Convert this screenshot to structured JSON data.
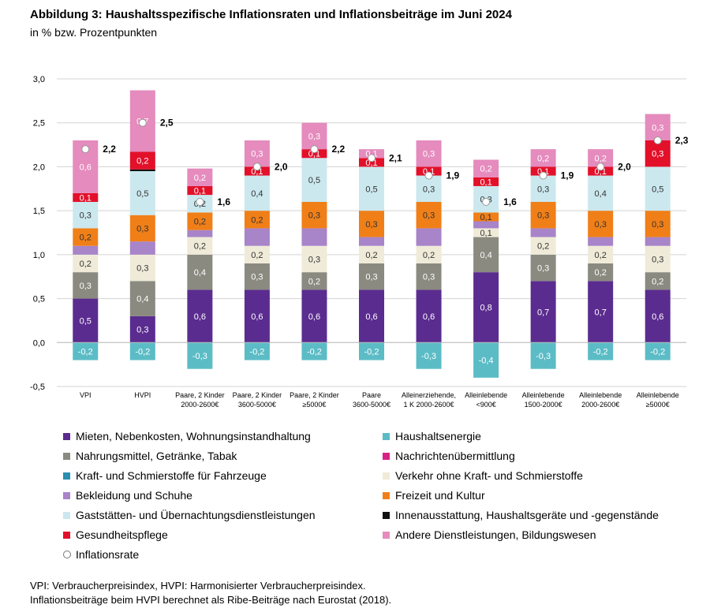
{
  "title": "Abbildung 3: Haushaltsspezifische Inflationsraten und Inflationsbeiträge im Juni 2024",
  "subtitle": "in % bzw. Prozentpunkten",
  "footnotes": [
    "VPI: Verbraucherpreisindex, HVPI: Harmonisierter Verbraucherpreisindex.",
    "Inflationsbeiträge beim HVPI berechnet als Ribe-Beiträge nach Eurostat (2018)."
  ],
  "chart_data": {
    "type": "bar",
    "stacked": true,
    "ylim": [
      -0.5,
      3.0
    ],
    "yticks": [
      "-0,5",
      "0,0",
      "0,5",
      "1,0",
      "1,5",
      "2,0",
      "2,5",
      "3,0"
    ],
    "ytick_values": [
      -0.5,
      0,
      0.5,
      1.0,
      1.5,
      2.0,
      2.5,
      3.0
    ],
    "grid": true,
    "legend_position": "bottom",
    "categories": [
      [
        "VPI"
      ],
      [
        "HVPI"
      ],
      [
        "Paare, 2  Kinder",
        "2000-2600€"
      ],
      [
        "Paare, 2  Kinder",
        "3600-5000€"
      ],
      [
        "Paare, 2  Kinder",
        "≥5000€"
      ],
      [
        "Paare",
        "3600-5000€"
      ],
      [
        "Alleinerziehende,",
        "1 K 2000-2600€"
      ],
      [
        "Alleinlebende",
        "<900€"
      ],
      [
        "Alleinlebende",
        "1500-2000€"
      ],
      [
        "Alleinlebende",
        "2000-2600€"
      ],
      [
        "Alleinlebende",
        "≥5000€"
      ]
    ],
    "series": [
      {
        "name": "Mieten, Nebenkosten, Wohnungsinstandhaltung",
        "color": "#5b2c8f",
        "values": [
          0.5,
          0.3,
          0.6,
          0.6,
          0.6,
          0.6,
          0.6,
          0.8,
          0.7,
          0.7,
          0.6
        ],
        "labels": [
          "0,5",
          "0,3",
          "0,6",
          "0,6",
          "0,6",
          "0,6",
          "0,6",
          "0,8",
          "0,7",
          "0,7",
          "0,6"
        ]
      },
      {
        "name": "Nahrungsmittel, Getränke, Tabak",
        "color": "#8a8a80",
        "values": [
          0.3,
          0.4,
          0.4,
          0.3,
          0.2,
          0.3,
          0.3,
          0.4,
          0.3,
          0.2,
          0.2
        ],
        "labels": [
          "0,3",
          "0,4",
          "0,4",
          "0,3",
          "0,2",
          "0,3",
          "0,3",
          "0,4",
          "0,3",
          "0,2",
          "0,2"
        ]
      },
      {
        "name": "Verkehr ohne Kraft- und Schmierstoffe",
        "color": "#efebd8",
        "values": [
          0.2,
          0.3,
          0.2,
          0.2,
          0.3,
          0.2,
          0.2,
          0.1,
          0.2,
          0.2,
          0.3
        ],
        "labels": [
          "0,2",
          "0,3",
          "0,2",
          "0,2",
          "0,3",
          "0,2",
          "0,2",
          "0,1",
          "0,2",
          "0,2",
          "0,3"
        ]
      },
      {
        "name": "Bekleidung und Schuhe",
        "color": "#a884c8",
        "values": [
          0.1,
          0.15,
          0.08,
          0.2,
          0.2,
          0.1,
          0.2,
          0.08,
          0.1,
          0.1,
          0.1
        ],
        "labels": [
          "",
          "",
          "",
          "",
          "",
          "",
          "",
          "",
          "",
          "",
          ""
        ]
      },
      {
        "name": "Freizeit und Kultur",
        "color": "#f07f18",
        "values": [
          0.2,
          0.3,
          0.2,
          0.2,
          0.3,
          0.3,
          0.3,
          0.1,
          0.3,
          0.3,
          0.3
        ],
        "labels": [
          "0,2",
          "0,3",
          "0,2",
          "0,2",
          "0,3",
          "0,3",
          "0,3",
          "0,1",
          "0,3",
          "0,3",
          "0,3"
        ]
      },
      {
        "name": "Gaststätten- und Übernachtungsdienstleistungen",
        "color": "#cbe8ee",
        "values": [
          0.3,
          0.5,
          0.2,
          0.4,
          0.5,
          0.5,
          0.3,
          0.3,
          0.3,
          0.4,
          0.5
        ],
        "labels": [
          "0,3",
          "0,5",
          "0,2",
          "0,4",
          "0,5",
          "0,5",
          "0,3",
          "0,3",
          "0,3",
          "0,4",
          "0,5"
        ]
      },
      {
        "name": "Innenausstattung, Haushaltsgeräte und -gegenstände",
        "color": "#111111",
        "values": [
          0,
          0.02,
          0,
          0,
          0,
          0,
          0,
          0,
          0,
          0,
          0
        ],
        "labels": [
          "",
          "",
          "",
          "",
          "",
          "",
          "",
          "",
          "",
          "",
          ""
        ]
      },
      {
        "name": "Gesundheitspflege",
        "color": "#e3102a",
        "values": [
          0.1,
          0.2,
          0.1,
          0.1,
          0.1,
          0.1,
          0.1,
          0.1,
          0.1,
          0.1,
          0.3
        ],
        "labels": [
          "0,1",
          "0,2",
          "0,1",
          "0,1",
          "0,1",
          "0,1",
          "0,1",
          "0,1",
          "0,1",
          "0,1",
          "0,3"
        ]
      },
      {
        "name": "Nachrichtenübermittlung",
        "color": "#d81f86",
        "values": [
          0,
          0,
          0,
          0,
          0,
          0,
          0,
          0,
          0,
          0,
          0
        ],
        "labels": [
          "",
          "",
          "",
          "",
          "",
          "",
          "",
          "",
          "",
          "",
          ""
        ]
      },
      {
        "name": "Andere Dienstleistungen, Bildungswesen",
        "color": "#e58bbd",
        "values": [
          0.6,
          0.7,
          0.2,
          0.3,
          0.3,
          0.1,
          0.3,
          0.2,
          0.2,
          0.2,
          0.3
        ],
        "labels": [
          "0,6",
          "0,7",
          "0,2",
          "0,3",
          "0,3",
          "0,1",
          "0,3",
          "0,2",
          "0,2",
          "0,2",
          "0,3"
        ]
      },
      {
        "name": "Haushaltsenergie",
        "color": "#5bbcc6",
        "values": [
          -0.2,
          -0.2,
          -0.3,
          -0.2,
          -0.2,
          -0.2,
          -0.3,
          -0.4,
          -0.3,
          -0.2,
          -0.2
        ],
        "labels": [
          "-0,2",
          "-0,2",
          "-0,3",
          "-0,2",
          "-0,2",
          "-0,2",
          "-0,3",
          "-0,4",
          "-0,3",
          "-0,2",
          "-0,2"
        ]
      },
      {
        "name": "Kraft- und Schmierstoffe für Fahrzeuge",
        "color": "#2a8fb0",
        "values": [
          0,
          0,
          0,
          0,
          0,
          0,
          0,
          0,
          0,
          0,
          0
        ],
        "labels": [
          "",
          "",
          "",
          "",
          "",
          "",
          "",
          "",
          "",
          "",
          ""
        ]
      }
    ],
    "inflation_rate": {
      "name": "Inflationsrate",
      "values": [
        2.2,
        2.5,
        1.6,
        2.0,
        2.2,
        2.1,
        1.9,
        1.6,
        1.9,
        2.0,
        2.3
      ],
      "labels": [
        "2,2",
        "2,5",
        "1,6",
        "2,0",
        "2,2",
        "2,1",
        "1,9",
        "1,6",
        "1,9",
        "2,0",
        "2,3"
      ]
    },
    "legend": {
      "left": [
        {
          "name": "Mieten, Nebenkosten, Wohnungsinstandhaltung",
          "color": "#5b2c8f",
          "marker": "square"
        },
        {
          "name": "Nahrungsmittel, Getränke, Tabak",
          "color": "#8a8a80",
          "marker": "square"
        },
        {
          "name": "Kraft- und Schmierstoffe für Fahrzeuge",
          "color": "#2a8fb0",
          "marker": "square"
        },
        {
          "name": "Bekleidung und Schuhe",
          "color": "#a884c8",
          "marker": "square"
        },
        {
          "name": "Gaststätten- und Übernachtungsdienstleistungen",
          "color": "#cbe8ee",
          "marker": "square"
        },
        {
          "name": "Gesundheitspflege",
          "color": "#e3102a",
          "marker": "square"
        },
        {
          "name": "Inflationsrate",
          "color": "#ffffff",
          "marker": "circle"
        }
      ],
      "right": [
        {
          "name": "Haushaltsenergie",
          "color": "#5bbcc6",
          "marker": "square"
        },
        {
          "name": "Nachrichtenübermittlung",
          "color": "#d81f86",
          "marker": "square"
        },
        {
          "name": "Verkehr ohne Kraft- und Schmierstoffe",
          "color": "#efebd8",
          "marker": "square"
        },
        {
          "name": "Freizeit und Kultur",
          "color": "#f07f18",
          "marker": "square"
        },
        {
          "name": "Innenausstattung, Haushaltsgeräte und -gegenstände",
          "color": "#111111",
          "marker": "square"
        },
        {
          "name": "Andere Dienstleistungen, Bildungswesen",
          "color": "#e58bbd",
          "marker": "square"
        }
      ]
    }
  }
}
